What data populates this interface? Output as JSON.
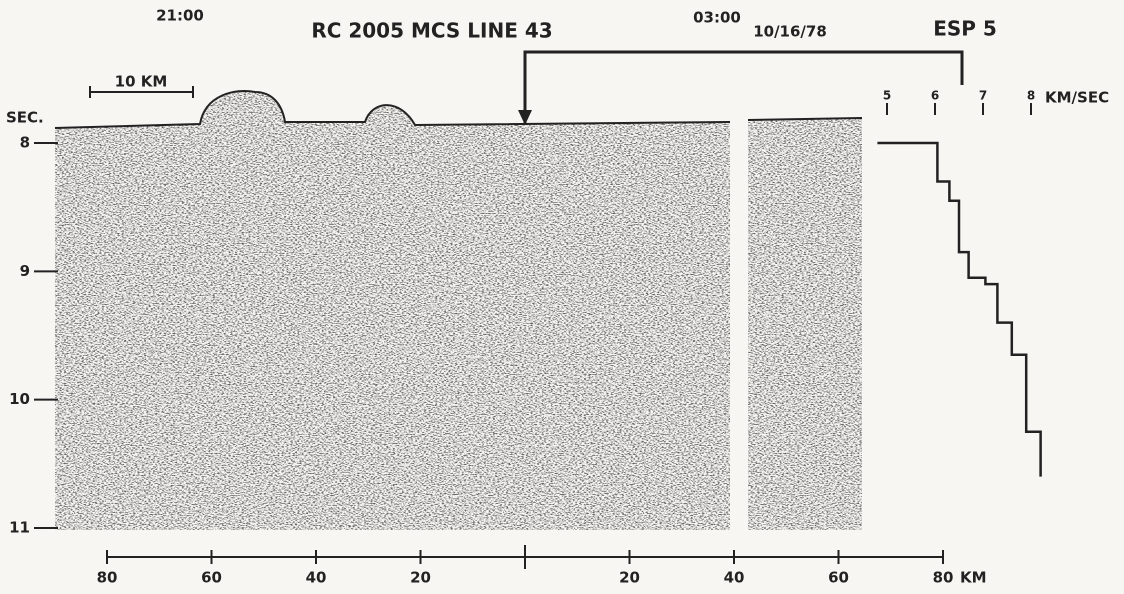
{
  "chart_data": [
    {
      "type": "section",
      "title": "RC 2005 MCS LINE 43",
      "annotations": [
        "21:00",
        "03:00",
        "10/16/78"
      ],
      "ylabel": "SEC.",
      "scale_label": "10 KM",
      "xlabel": "KM",
      "ylim": [
        8,
        11
      ],
      "yticks": [
        8,
        9,
        10,
        11
      ],
      "xlim": [
        -80,
        80
      ],
      "xticks": [
        {
          "value": -80,
          "label": "80"
        },
        {
          "value": -60,
          "label": "60"
        },
        {
          "value": -40,
          "label": "40"
        },
        {
          "value": -20,
          "label": "20"
        },
        20,
        40,
        60,
        80
      ]
    },
    {
      "type": "step",
      "title": "ESP 5",
      "xlabel": "KM/SEC",
      "xlim": [
        5,
        8
      ],
      "xticks": [
        5,
        6,
        7,
        8
      ],
      "ylim": [
        8,
        11
      ],
      "color": "#222222",
      "x": [
        4.8,
        6.05,
        6.05,
        6.3,
        6.3,
        6.5,
        6.5,
        6.7,
        6.7,
        7.05,
        7.05,
        7.3,
        7.3,
        7.6,
        7.6,
        7.9,
        7.9,
        8.2,
        8.2
      ],
      "values": [
        8,
        8,
        8.3,
        8.3,
        8.45,
        8.45,
        8.85,
        8.85,
        9.05,
        9.05,
        9.1,
        9.1,
        9.4,
        9.4,
        9.65,
        9.65,
        10.25,
        10.25,
        10.6
      ]
    }
  ]
}
